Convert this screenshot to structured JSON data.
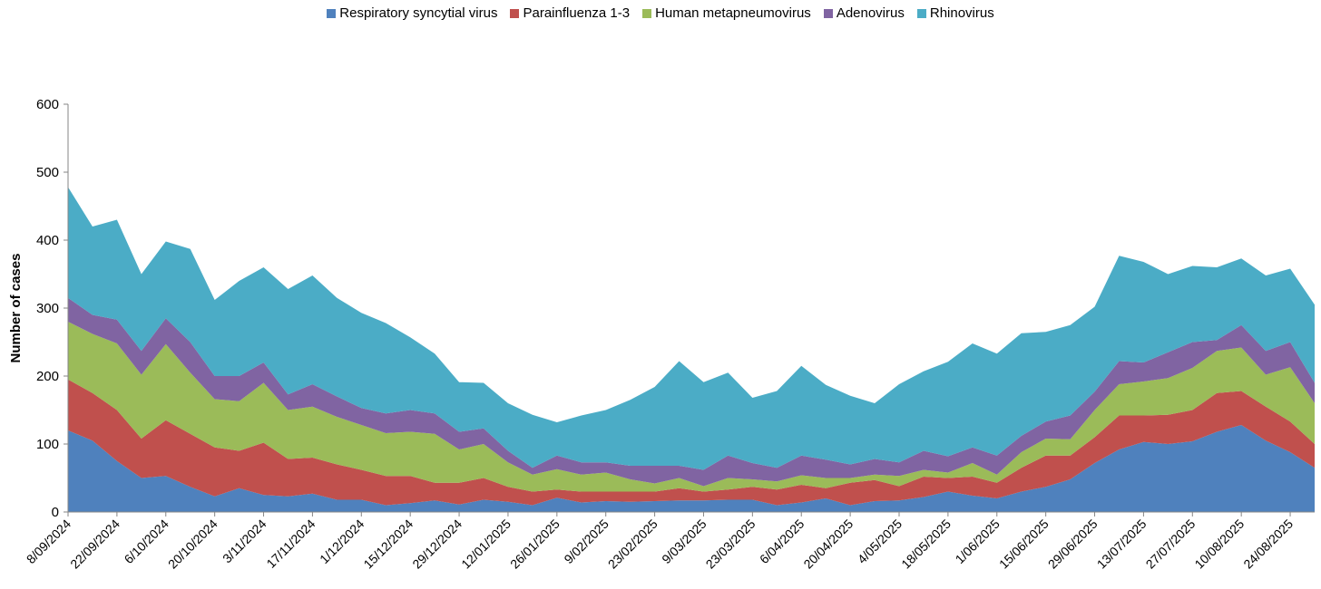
{
  "chart_data": {
    "type": "stacked-area",
    "y_label": "Number of cases",
    "categories": [
      "8/09/2024",
      null,
      "22/09/2024",
      null,
      "6/10/2024",
      null,
      "20/10/2024",
      null,
      "3/11/2024",
      null,
      "17/11/2024",
      null,
      "1/12/2024",
      null,
      "15/12/2024",
      null,
      "29/12/2024",
      null,
      "12/01/2025",
      null,
      "26/01/2025",
      null,
      "9/02/2025",
      null,
      "23/02/2025",
      null,
      "9/03/2025",
      null,
      "23/03/2025",
      null,
      "6/04/2025",
      null,
      "20/04/2025",
      null,
      "4/05/2025",
      null,
      "18/05/2025",
      null,
      "1/06/2025",
      null,
      "15/06/2025",
      null,
      "29/06/2025",
      null,
      "13/07/2025",
      null,
      "27/07/2025",
      null,
      "10/08/2025",
      null,
      "24/08/2025",
      null
    ],
    "series": [
      {
        "name": "Respiratory syncytial virus",
        "color": "#4f81bd",
        "values": [
          120,
          105,
          75,
          50,
          53,
          37,
          23,
          35,
          25,
          23,
          27,
          18,
          18,
          10,
          13,
          17,
          11,
          18,
          15,
          10,
          21,
          14,
          16,
          15,
          16,
          17,
          17,
          18,
          18,
          10,
          14,
          20,
          10,
          16,
          17,
          22,
          30,
          24,
          20,
          30,
          37,
          48,
          72,
          92,
          103,
          100,
          104,
          118,
          128,
          105,
          88,
          65
        ]
      },
      {
        "name": "Parainfluenza 1-3",
        "color": "#c0504d",
        "values": [
          75,
          70,
          75,
          58,
          82,
          78,
          72,
          55,
          77,
          55,
          53,
          52,
          44,
          43,
          40,
          26,
          32,
          32,
          22,
          20,
          12,
          16,
          14,
          15,
          14,
          18,
          13,
          15,
          19,
          23,
          26,
          15,
          33,
          31,
          21,
          30,
          20,
          28,
          23,
          35,
          46,
          35,
          38,
          50,
          39,
          43,
          46,
          57,
          50,
          50,
          45,
          35
        ]
      },
      {
        "name": "Human metapneumovirus",
        "color": "#9bbb59",
        "values": [
          85,
          87,
          98,
          94,
          112,
          90,
          71,
          73,
          88,
          72,
          75,
          70,
          66,
          63,
          65,
          72,
          49,
          50,
          36,
          25,
          30,
          25,
          28,
          18,
          12,
          15,
          8,
          17,
          11,
          12,
          14,
          15,
          7,
          8,
          15,
          10,
          8,
          20,
          12,
          23,
          25,
          24,
          40,
          46,
          50,
          54,
          62,
          62,
          64,
          47,
          80,
          60
        ]
      },
      {
        "name": "Adenovirus",
        "color": "#8064a2",
        "values": [
          35,
          28,
          35,
          35,
          38,
          45,
          34,
          37,
          30,
          23,
          33,
          30,
          25,
          29,
          32,
          30,
          26,
          23,
          17,
          10,
          20,
          18,
          15,
          20,
          26,
          18,
          24,
          33,
          24,
          20,
          29,
          27,
          20,
          23,
          20,
          28,
          24,
          23,
          28,
          24,
          25,
          35,
          27,
          34,
          28,
          38,
          38,
          16,
          33,
          35,
          37,
          30
        ]
      },
      {
        "name": "Rhinovirus",
        "color": "#4bacc6",
        "values": [
          163,
          130,
          147,
          113,
          113,
          137,
          112,
          140,
          140,
          155,
          160,
          145,
          140,
          133,
          107,
          88,
          73,
          67,
          70,
          78,
          49,
          69,
          77,
          97,
          116,
          154,
          129,
          122,
          96,
          113,
          132,
          110,
          101,
          82,
          115,
          117,
          139,
          153,
          150,
          151,
          132,
          133,
          125,
          155,
          148,
          115,
          112,
          107,
          98,
          111,
          108,
          115
        ]
      }
    ],
    "ylim": [
      0,
      600
    ],
    "yticks": [
      0,
      100,
      200,
      300,
      400,
      500,
      600
    ]
  }
}
